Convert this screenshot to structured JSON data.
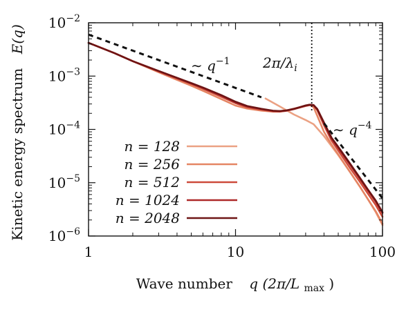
{
  "chart_data": {
    "type": "line",
    "title": "",
    "xlabel": "Wave number",
    "xlabel_math": "q (2π/L",
    "xlabel_math_sub": "max",
    "xlabel_math_end": ")",
    "ylabel": "Kinetic energy spectrum",
    "ylabel_math": "E(q)",
    "x_scale": "log",
    "y_scale": "log",
    "xlim": [
      1,
      100
    ],
    "ylim": [
      1e-06,
      0.01
    ],
    "x_ticks": [
      {
        "value": 1,
        "label": "1"
      },
      {
        "value": 10,
        "label": "10"
      },
      {
        "value": 100,
        "label": "100"
      }
    ],
    "y_ticks": [
      {
        "value": 1e-06,
        "base": "10",
        "exp": "−6"
      },
      {
        "value": 1e-05,
        "base": "10",
        "exp": "−5"
      },
      {
        "value": 0.0001,
        "base": "10",
        "exp": "−4"
      },
      {
        "value": 0.001,
        "base": "10",
        "exp": "−3"
      },
      {
        "value": 0.01,
        "base": "10",
        "exp": "−2"
      }
    ],
    "grid": false,
    "legend_position": "bottom-left",
    "series": [
      {
        "name": "n = 128",
        "color": "#eba183",
        "x": [
          16,
          20,
          25,
          30,
          34,
          40,
          50,
          60,
          70,
          80,
          90,
          100
        ],
        "y": [
          0.00038,
          0.00027,
          0.00019,
          0.00015,
          0.000125,
          7.5e-05,
          3.3e-05,
          1.6e-05,
          8.5e-06,
          4.8e-06,
          2.8e-06,
          1.6e-06
        ]
      },
      {
        "name": "n = 256",
        "color": "#e58563",
        "x": [
          1,
          1.5,
          2,
          3,
          4,
          5,
          6,
          8,
          10,
          12,
          15,
          18,
          20,
          22,
          25,
          28,
          30,
          32,
          34,
          36,
          40,
          45,
          50,
          60,
          70,
          80,
          90,
          100
        ],
        "y": [
          0.0042,
          0.0027,
          0.0019,
          0.00118,
          0.00085,
          0.00066,
          0.00053,
          0.00037,
          0.00028,
          0.000245,
          0.000225,
          0.000215,
          0.000215,
          0.000225,
          0.000245,
          0.000265,
          0.00028,
          0.00029,
          0.00026,
          0.00018,
          9e-05,
          5.2e-05,
          3.4e-05,
          1.6e-05,
          8.5e-06,
          4.8e-06,
          2.9e-06,
          1.7e-06
        ]
      },
      {
        "name": "n = 512",
        "color": "#cd4a3a",
        "x": [
          1,
          1.5,
          2,
          3,
          4,
          5,
          6,
          8,
          10,
          12,
          15,
          18,
          20,
          22,
          25,
          28,
          30,
          32,
          34,
          36,
          40,
          45,
          50,
          60,
          70,
          80,
          90,
          100
        ],
        "y": [
          0.0042,
          0.0027,
          0.0019,
          0.00122,
          0.0009,
          0.00071,
          0.00058,
          0.00041,
          0.00031,
          0.00026,
          0.000235,
          0.000218,
          0.000216,
          0.000222,
          0.00024,
          0.000262,
          0.000275,
          0.000285,
          0.00028,
          0.00023,
          0.00012,
          6.2e-05,
          4e-05,
          1.9e-05,
          1.05e-05,
          6.1e-06,
          3.8e-06,
          2.3e-06
        ]
      },
      {
        "name": "n = 1024",
        "color": "#ad2828",
        "x": [
          1,
          1.5,
          2,
          3,
          4,
          5,
          6,
          8,
          10,
          12,
          15,
          18,
          20,
          22,
          25,
          28,
          30,
          32,
          34,
          36,
          40,
          45,
          50,
          60,
          70,
          80,
          90,
          100
        ],
        "y": [
          0.0042,
          0.0027,
          0.0019,
          0.00124,
          0.00092,
          0.00073,
          0.0006,
          0.00043,
          0.00032,
          0.00027,
          0.00024,
          0.000222,
          0.00022,
          0.000225,
          0.000242,
          0.000265,
          0.00028,
          0.00029,
          0.000285,
          0.00024,
          0.00013,
          6.8e-05,
          4.5e-05,
          2.2e-05,
          1.2e-05,
          7e-06,
          4.4e-06,
          2.7e-06
        ]
      },
      {
        "name": "n = 2048",
        "color": "#6e1414",
        "x": [
          1,
          1.5,
          2,
          3,
          4,
          5,
          6,
          8,
          10,
          12,
          15,
          18,
          20,
          22,
          25,
          28,
          30,
          32,
          34,
          36,
          40,
          45,
          50,
          60,
          70,
          80,
          90,
          100
        ],
        "y": [
          0.0042,
          0.0027,
          0.0019,
          0.00125,
          0.00093,
          0.00074,
          0.00061,
          0.00044,
          0.00033,
          0.000275,
          0.000243,
          0.000224,
          0.000221,
          0.000226,
          0.000243,
          0.000266,
          0.000281,
          0.000291,
          0.000286,
          0.000242,
          0.000135,
          7e-05,
          4.7e-05,
          2.3e-05,
          1.25e-05,
          7.3e-06,
          4.6e-06,
          2.8e-06
        ]
      }
    ],
    "reference_lines": [
      {
        "label": "∼ q",
        "label_exp": "−1",
        "style": "dashed",
        "x": [
          1,
          15
        ],
        "y": [
          0.006,
          0.0004
        ]
      },
      {
        "label": "∼ q",
        "label_exp": "−4",
        "style": "dashed",
        "x": [
          40,
          100
        ],
        "y": [
          0.00013,
          5.1e-06
        ]
      }
    ],
    "vertical_marker": {
      "x": 33,
      "style": "dotted",
      "label": "2π/λ",
      "label_sub": "i"
    }
  }
}
